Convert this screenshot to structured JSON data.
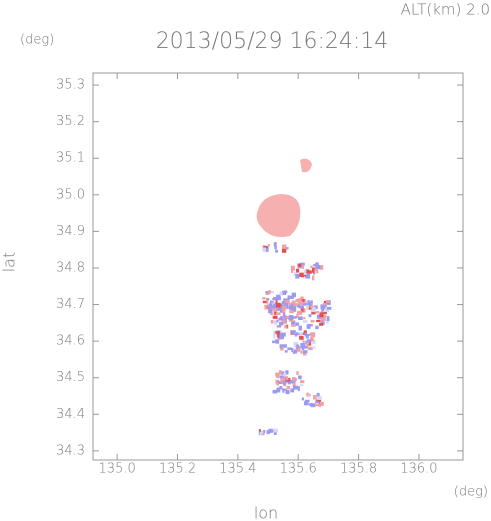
{
  "chart_data": {
    "type": "map",
    "title": "2013/05/29 16:24:14",
    "altitude_label": "ALT(km) 2.0",
    "y_unit": "(deg)",
    "x_unit": "(deg)",
    "xlabel": "lon",
    "ylabel": "lat",
    "xlim": [
      134.92,
      136.146
    ],
    "ylim": [
      34.275,
      35.333
    ],
    "xticks": [
      {
        "value": 135.0,
        "label": "135.0"
      },
      {
        "value": 135.2,
        "label": "135.2"
      },
      {
        "value": 135.4,
        "label": "135.4"
      },
      {
        "value": 135.6,
        "label": "135.6"
      },
      {
        "value": 135.8,
        "label": "135.8"
      },
      {
        "value": 136.0,
        "label": "136.0"
      }
    ],
    "yticks": [
      34.3,
      34.4,
      34.5,
      34.6,
      34.7,
      34.8,
      34.9,
      {
        "value": 35.0,
        "label": "35.0"
      },
      35.1,
      35.2,
      35.3
    ]
  }
}
